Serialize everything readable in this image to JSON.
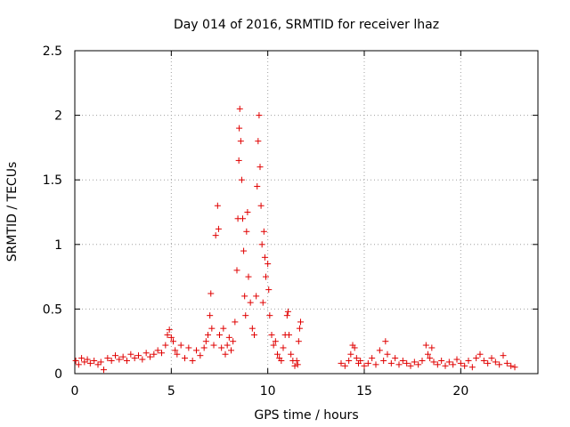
{
  "chart_data": {
    "type": "scatter",
    "title": "Day 014 of 2016, SRMTID for receiver lhaz",
    "xlabel": "GPS time / hours",
    "ylabel": "SRMTID / TECUs",
    "xlim": [
      0,
      24
    ],
    "ylim": [
      0,
      2.5
    ],
    "xticks": [
      0,
      5,
      10,
      15,
      20
    ],
    "xtick_labels": [
      "0",
      "5",
      "10",
      "15",
      "20"
    ],
    "yticks": [
      0,
      0.5,
      1,
      1.5,
      2,
      2.5
    ],
    "ytick_labels": [
      "0",
      "0.5",
      "1",
      "1.5",
      "2",
      "2.5"
    ],
    "grid": true,
    "marker": "+",
    "series": [
      {
        "name": "SRMTID",
        "color": "#e00000",
        "points": [
          [
            0.05,
            0.1
          ],
          [
            0.2,
            0.07
          ],
          [
            0.35,
            0.12
          ],
          [
            0.5,
            0.09
          ],
          [
            0.65,
            0.11
          ],
          [
            0.8,
            0.08
          ],
          [
            1.0,
            0.1
          ],
          [
            1.2,
            0.07
          ],
          [
            1.35,
            0.09
          ],
          [
            1.5,
            0.03
          ],
          [
            1.7,
            0.12
          ],
          [
            1.9,
            0.1
          ],
          [
            2.1,
            0.14
          ],
          [
            2.3,
            0.11
          ],
          [
            2.5,
            0.13
          ],
          [
            2.7,
            0.1
          ],
          [
            2.9,
            0.15
          ],
          [
            3.1,
            0.12
          ],
          [
            3.3,
            0.14
          ],
          [
            3.5,
            0.11
          ],
          [
            3.7,
            0.16
          ],
          [
            3.9,
            0.13
          ],
          [
            4.1,
            0.15
          ],
          [
            4.3,
            0.18
          ],
          [
            4.5,
            0.16
          ],
          [
            4.7,
            0.22
          ],
          [
            4.8,
            0.3
          ],
          [
            4.9,
            0.34
          ],
          [
            5.0,
            0.28
          ],
          [
            5.1,
            0.25
          ],
          [
            5.2,
            0.18
          ],
          [
            5.3,
            0.15
          ],
          [
            5.5,
            0.22
          ],
          [
            5.7,
            0.12
          ],
          [
            5.9,
            0.2
          ],
          [
            6.1,
            0.1
          ],
          [
            6.3,
            0.18
          ],
          [
            6.5,
            0.14
          ],
          [
            6.7,
            0.2
          ],
          [
            6.8,
            0.25
          ],
          [
            6.9,
            0.3
          ],
          [
            7.0,
            0.45
          ],
          [
            7.05,
            0.62
          ],
          [
            7.1,
            0.35
          ],
          [
            7.2,
            0.22
          ],
          [
            7.3,
            1.07
          ],
          [
            7.4,
            1.3
          ],
          [
            7.45,
            1.12
          ],
          [
            7.5,
            0.3
          ],
          [
            7.6,
            0.2
          ],
          [
            7.7,
            0.35
          ],
          [
            7.8,
            0.15
          ],
          [
            7.9,
            0.22
          ],
          [
            8.0,
            0.28
          ],
          [
            8.1,
            0.18
          ],
          [
            8.2,
            0.25
          ],
          [
            8.3,
            0.4
          ],
          [
            8.4,
            0.8
          ],
          [
            8.45,
            1.2
          ],
          [
            8.5,
            1.65
          ],
          [
            8.52,
            1.9
          ],
          [
            8.55,
            2.05
          ],
          [
            8.6,
            1.8
          ],
          [
            8.65,
            1.5
          ],
          [
            8.7,
            1.2
          ],
          [
            8.75,
            0.95
          ],
          [
            8.8,
            0.6
          ],
          [
            8.85,
            0.45
          ],
          [
            8.9,
            1.1
          ],
          [
            8.95,
            1.25
          ],
          [
            9.0,
            0.75
          ],
          [
            9.1,
            0.55
          ],
          [
            9.2,
            0.35
          ],
          [
            9.3,
            0.3
          ],
          [
            9.4,
            0.6
          ],
          [
            9.45,
            1.45
          ],
          [
            9.5,
            1.8
          ],
          [
            9.55,
            2.0
          ],
          [
            9.6,
            1.6
          ],
          [
            9.65,
            1.3
          ],
          [
            9.7,
            1.0
          ],
          [
            9.75,
            0.55
          ],
          [
            9.8,
            1.1
          ],
          [
            9.85,
            0.9
          ],
          [
            9.9,
            0.75
          ],
          [
            10.0,
            0.85
          ],
          [
            10.05,
            0.65
          ],
          [
            10.1,
            0.45
          ],
          [
            10.2,
            0.3
          ],
          [
            10.3,
            0.22
          ],
          [
            10.4,
            0.25
          ],
          [
            10.5,
            0.15
          ],
          [
            10.6,
            0.12
          ],
          [
            10.7,
            0.1
          ],
          [
            10.8,
            0.2
          ],
          [
            10.9,
            0.3
          ],
          [
            11.0,
            0.45
          ],
          [
            11.05,
            0.48
          ],
          [
            11.1,
            0.3
          ],
          [
            11.2,
            0.15
          ],
          [
            11.3,
            0.1
          ],
          [
            11.4,
            0.06
          ],
          [
            11.5,
            0.1
          ],
          [
            11.55,
            0.07
          ],
          [
            11.6,
            0.25
          ],
          [
            11.65,
            0.35
          ],
          [
            11.7,
            0.4
          ],
          [
            13.8,
            0.08
          ],
          [
            14.0,
            0.06
          ],
          [
            14.2,
            0.1
          ],
          [
            14.3,
            0.15
          ],
          [
            14.4,
            0.22
          ],
          [
            14.5,
            0.2
          ],
          [
            14.6,
            0.12
          ],
          [
            14.7,
            0.08
          ],
          [
            14.8,
            0.1
          ],
          [
            15.0,
            0.06
          ],
          [
            15.2,
            0.08
          ],
          [
            15.4,
            0.12
          ],
          [
            15.6,
            0.07
          ],
          [
            15.8,
            0.18
          ],
          [
            16.0,
            0.1
          ],
          [
            16.1,
            0.25
          ],
          [
            16.2,
            0.15
          ],
          [
            16.4,
            0.08
          ],
          [
            16.6,
            0.12
          ],
          [
            16.8,
            0.07
          ],
          [
            17.0,
            0.1
          ],
          [
            17.2,
            0.08
          ],
          [
            17.4,
            0.06
          ],
          [
            17.6,
            0.09
          ],
          [
            17.8,
            0.07
          ],
          [
            18.0,
            0.1
          ],
          [
            18.2,
            0.22
          ],
          [
            18.3,
            0.15
          ],
          [
            18.4,
            0.12
          ],
          [
            18.5,
            0.2
          ],
          [
            18.6,
            0.09
          ],
          [
            18.8,
            0.07
          ],
          [
            19.0,
            0.1
          ],
          [
            19.2,
            0.06
          ],
          [
            19.4,
            0.09
          ],
          [
            19.6,
            0.07
          ],
          [
            19.8,
            0.11
          ],
          [
            20.0,
            0.08
          ],
          [
            20.2,
            0.06
          ],
          [
            20.4,
            0.1
          ],
          [
            20.6,
            0.05
          ],
          [
            20.8,
            0.12
          ],
          [
            21.0,
            0.15
          ],
          [
            21.2,
            0.1
          ],
          [
            21.4,
            0.08
          ],
          [
            21.6,
            0.12
          ],
          [
            21.8,
            0.09
          ],
          [
            22.0,
            0.07
          ],
          [
            22.2,
            0.14
          ],
          [
            22.4,
            0.08
          ],
          [
            22.6,
            0.06
          ],
          [
            22.8,
            0.05
          ]
        ]
      }
    ]
  }
}
